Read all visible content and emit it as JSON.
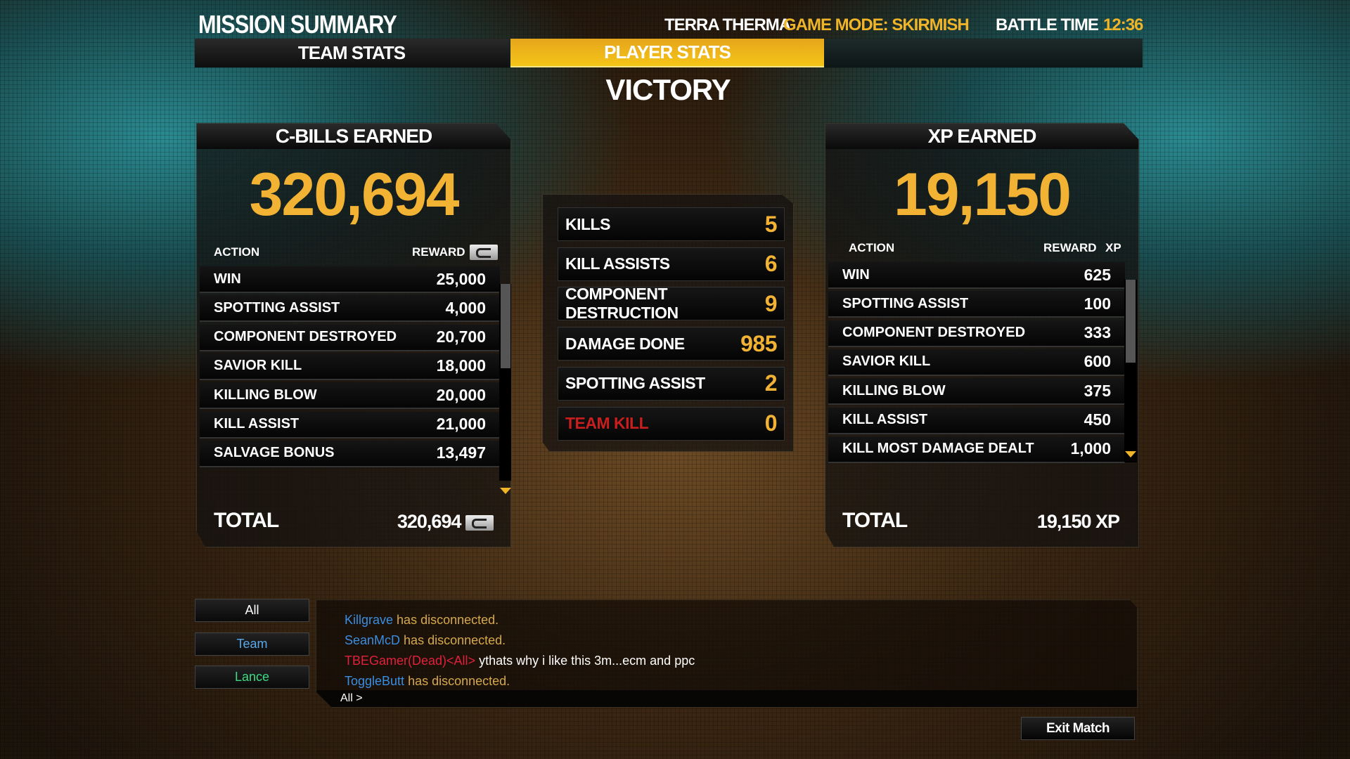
{
  "header": {
    "title": "MISSION SUMMARY",
    "map": "TERRA THERMA",
    "game_mode": "GAME MODE: SKIRMISH",
    "battle_time_label": "BATTLE TIME",
    "battle_time": "12:36"
  },
  "tabs": [
    {
      "label": "TEAM STATS",
      "active": false
    },
    {
      "label": "PLAYER STATS",
      "active": true
    }
  ],
  "result": "VICTORY",
  "cbills": {
    "title": "C-BILLS EARNED",
    "amount": "320,694",
    "col_action": "ACTION",
    "col_reward": "REWARD",
    "currency_icon": "c-bill-icon",
    "rows": [
      {
        "action": "WIN",
        "value": "25,000"
      },
      {
        "action": "SPOTTING ASSIST",
        "value": "4,000"
      },
      {
        "action": "COMPONENT DESTROYED",
        "value": "20,700"
      },
      {
        "action": "SAVIOR KILL",
        "value": "18,000"
      },
      {
        "action": "KILLING BLOW",
        "value": "20,000"
      },
      {
        "action": "KILL ASSIST",
        "value": "21,000"
      },
      {
        "action": "SALVAGE BONUS",
        "value": "13,497"
      }
    ],
    "total_label": "TOTAL",
    "total": "320,694"
  },
  "stats": [
    {
      "label": "KILLS",
      "value": "5"
    },
    {
      "label": "KILL ASSISTS",
      "value": "6"
    },
    {
      "label": "COMPONENT DESTRUCTION",
      "value": "9"
    },
    {
      "label": "DAMAGE DONE",
      "value": "985"
    },
    {
      "label": "SPOTTING ASSIST",
      "value": "2"
    },
    {
      "label": "TEAM KILL",
      "value": "0",
      "color": "#c81e1e"
    }
  ],
  "xp": {
    "title": "XP EARNED",
    "amount": "19,150",
    "col_action": "ACTION",
    "col_reward": "REWARD",
    "col_xp": "XP",
    "rows": [
      {
        "action": "WIN",
        "value": "625"
      },
      {
        "action": "SPOTTING ASSIST",
        "value": "100"
      },
      {
        "action": "COMPONENT DESTROYED",
        "value": "333"
      },
      {
        "action": "SAVIOR KILL",
        "value": "600"
      },
      {
        "action": "KILLING BLOW",
        "value": "375"
      },
      {
        "action": "KILL ASSIST",
        "value": "450"
      },
      {
        "action": "KILL MOST DAMAGE DEALT",
        "value": "1,000"
      }
    ],
    "total_label": "TOTAL",
    "total": "19,150 XP"
  },
  "chat": {
    "channels": [
      {
        "label": "All",
        "color": "#ffffff"
      },
      {
        "label": "Team",
        "color": "#5aa8e8"
      },
      {
        "label": "Lance",
        "color": "#3ddc84"
      }
    ],
    "messages": [
      {
        "name": "Killgrave",
        "text": "has disconnected.",
        "type": "system"
      },
      {
        "name": "SeanMcD",
        "text": "has disconnected.",
        "type": "system"
      },
      {
        "name": "TBEGamer(Dead)<All>",
        "text": "ythats why i like this 3m...ecm and ppc",
        "type": "chat"
      },
      {
        "name": "ToggleButt",
        "text": "has disconnected.",
        "type": "system"
      }
    ],
    "input_prefix": "All >"
  },
  "exit_label": "Exit Match",
  "colors": {
    "accent": "#f2b233",
    "tab_active": "#f5c518",
    "player_name": "#3b8de0",
    "system_text": "#d6a94a",
    "enemy_name": "#e0213c"
  }
}
